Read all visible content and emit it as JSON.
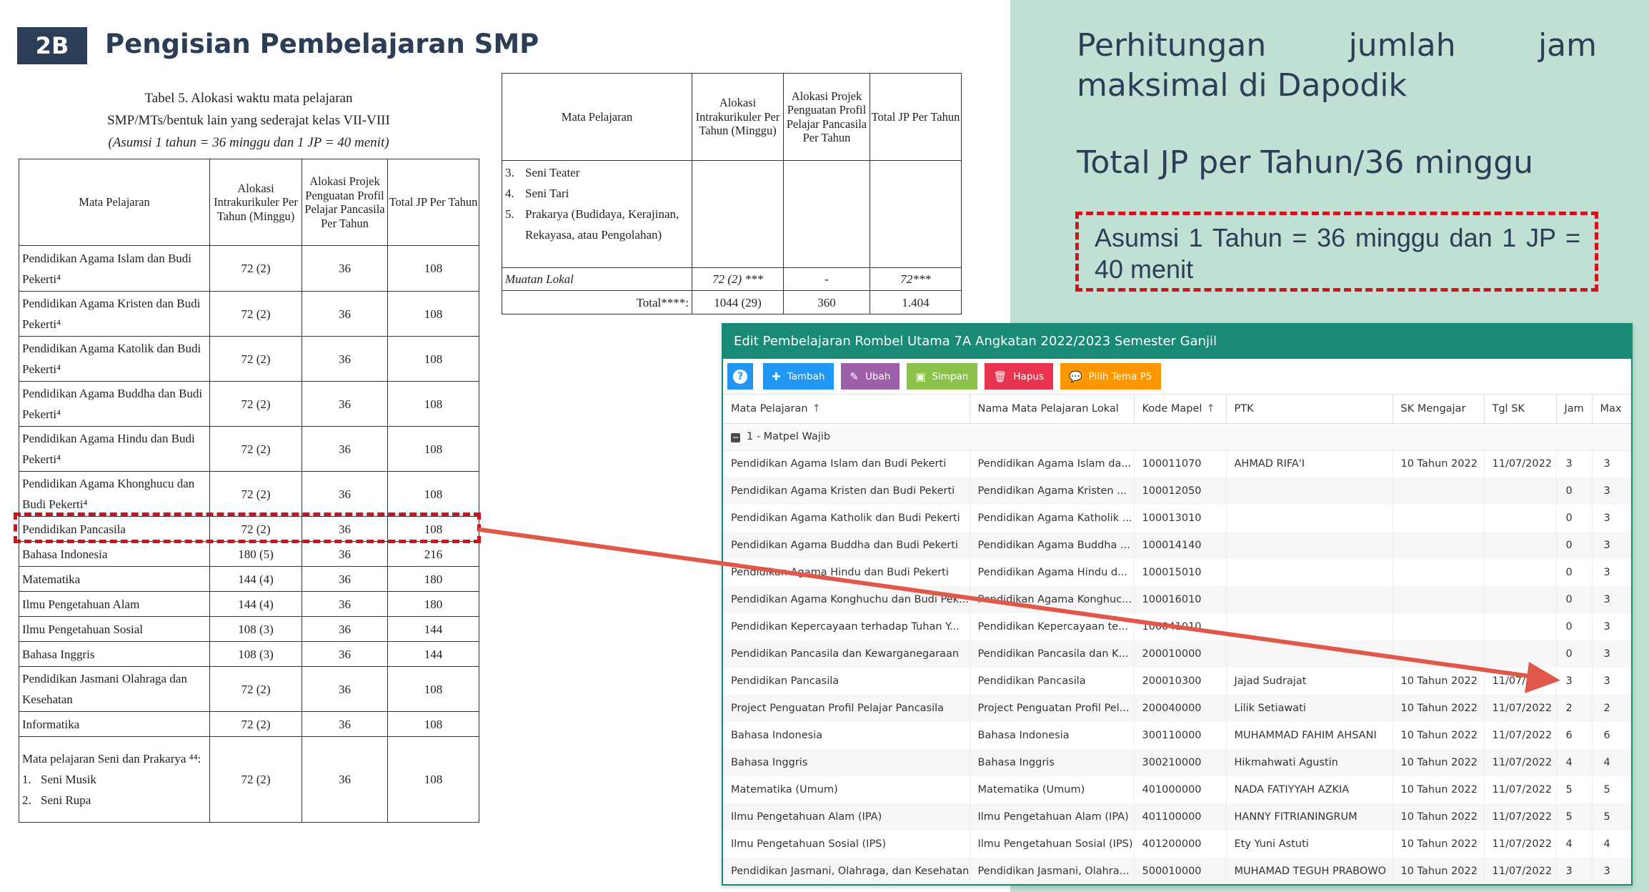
{
  "slide": {
    "badge": "2B",
    "title": "Pengisian Pembelajaran SMP",
    "calc_title": "Perhitungan  jumlah  jam  maksimal di Dapodik",
    "calc_formula": "Total JP per Tahun/36 minggu",
    "assumption": "Asumsi 1 Tahun = 36 minggu dan 1 JP = 40 menit"
  },
  "colors": {
    "green_panel": "#bfe0d2",
    "navy": "#2c3e57",
    "highlight_red": "#d0121b",
    "arrow": "#e0584a",
    "window_header": "#188a76"
  },
  "table5": {
    "caption_1": "Tabel 5. Alokasi waktu mata pelajaran",
    "caption_2": "SMP/MTs/bentuk lain yang sederajat kelas VII-VIII",
    "caption_3": "(Asumsi 1 tahun = 36 minggu dan 1 JP = 40 menit)",
    "headers": [
      "Mata Pelajaran",
      "Alokasi Intrakurikuler Per Tahun (Minggu)",
      "Alokasi Projek Penguatan Profil Pelajar Pancasila Per Tahun",
      "Total JP Per Tahun"
    ],
    "rows": [
      {
        "subject": "Pendidikan Agama Islam dan Budi Pekerti⁴",
        "intra": "72 (2)",
        "projek": "36",
        "total": "108"
      },
      {
        "subject": "Pendidikan Agama Kristen dan Budi Pekerti⁴",
        "intra": "72 (2)",
        "projek": "36",
        "total": "108"
      },
      {
        "subject": "Pendidikan Agama Katolik dan Budi Pekerti⁴",
        "intra": "72 (2)",
        "projek": "36",
        "total": "108"
      },
      {
        "subject": "Pendidikan Agama Buddha dan Budi Pekerti⁴",
        "intra": "72 (2)",
        "projek": "36",
        "total": "108"
      },
      {
        "subject": "Pendidikan Agama Hindu dan Budi Pekerti⁴",
        "intra": "72 (2)",
        "projek": "36",
        "total": "108"
      },
      {
        "subject": "Pendidikan Agama Khonghucu dan Budi Pekerti⁴",
        "intra": "72 (2)",
        "projek": "36",
        "total": "108"
      },
      {
        "subject": "Pendidikan Pancasila",
        "intra": "72 (2)",
        "projek": "36",
        "total": "108"
      },
      {
        "subject": "Bahasa Indonesia",
        "intra": "180 (5)",
        "projek": "36",
        "total": "216"
      },
      {
        "subject": "Matematika",
        "intra": "144 (4)",
        "projek": "36",
        "total": "180"
      },
      {
        "subject": "Ilmu Pengetahuan Alam",
        "intra": "144 (4)",
        "projek": "36",
        "total": "180"
      },
      {
        "subject": "Ilmu Pengetahuan Sosial",
        "intra": "108 (3)",
        "projek": "36",
        "total": "144"
      },
      {
        "subject": "Bahasa Inggris",
        "intra": "108 (3)",
        "projek": "36",
        "total": "144"
      },
      {
        "subject": "Pendidikan Jasmani Olahraga dan Kesehatan",
        "intra": "72 (2)",
        "projek": "36",
        "total": "108"
      },
      {
        "subject": "Informatika",
        "intra": "72 (2)",
        "projek": "36",
        "total": "108"
      }
    ],
    "seni_row": {
      "intro": "Mata pelajaran Seni dan Prakarya ⁴⁴:",
      "items": [
        {
          "n": "1.",
          "label": "Seni Musik"
        },
        {
          "n": "2.",
          "label": "Seni Rupa"
        }
      ],
      "intra": "72 (2)",
      "projek": "36",
      "total": "108"
    }
  },
  "table5_cont": {
    "headers": [
      "Mata Pelajaran",
      "Alokasi Intrakurikuler Per Tahun (Minggu)",
      "Alokasi Projek Penguatan Profil Pelajar Pancasila Per Tahun",
      "Total JP Per Tahun"
    ],
    "items": [
      {
        "n": "3.",
        "label": "Seni Teater"
      },
      {
        "n": "4.",
        "label": "Seni Tari"
      },
      {
        "n": "5.",
        "label": "Prakarya (Budidaya, Kerajinan, Rekayasa, atau Pengolahan)"
      }
    ],
    "muatan_lokal": {
      "subject": "Muatan Lokal",
      "intra": "72 (2) ***",
      "projek": "-",
      "total": "72***"
    },
    "total": {
      "label": "Total****:",
      "intra": "1044 (29)",
      "projek": "360",
      "total": "1.404"
    }
  },
  "app": {
    "window_title": "Edit Pembelajaran Rombel Utama 7A Angkatan 2022/2023 Semester Ganjil",
    "toolbar": {
      "help_icon": "question-circle-icon",
      "tambah": "Tambah",
      "ubah": "Ubah",
      "simpan": "Simpan",
      "hapus": "Hapus",
      "pilih_tema": "Pilih Tema P5"
    },
    "columns": [
      "Mata Pelajaran",
      "Nama Mata Pelajaran Lokal",
      "Kode Mapel",
      "PTK",
      "SK Mengajar",
      "Tgl SK",
      "Jam",
      "Max"
    ],
    "group_label": "1 - Matpel Wajib",
    "rows": [
      {
        "mapel": "Pendidikan Agama Islam dan Budi Pekerti",
        "lokal": "Pendidikan Agama Islam da...",
        "kode": "100011070",
        "ptk": "AHMAD RIFA'I",
        "sk": "10 Tahun 2022",
        "tgl": "11/07/2022",
        "jam": "3",
        "max": "3"
      },
      {
        "mapel": "Pendidikan Agama Kristen dan Budi Pekerti",
        "lokal": "Pendidikan Agama Kristen ...",
        "kode": "100012050",
        "ptk": "",
        "sk": "",
        "tgl": "",
        "jam": "0",
        "max": "3"
      },
      {
        "mapel": "Pendidikan Agama Katholik dan Budi Pekerti",
        "lokal": "Pendidikan Agama Katholik ...",
        "kode": "100013010",
        "ptk": "",
        "sk": "",
        "tgl": "",
        "jam": "0",
        "max": "3"
      },
      {
        "mapel": "Pendidikan Agama Buddha dan Budi Pekerti",
        "lokal": "Pendidikan Agama Buddha ...",
        "kode": "100014140",
        "ptk": "",
        "sk": "",
        "tgl": "",
        "jam": "0",
        "max": "3"
      },
      {
        "mapel": "Pendidikan Agama Hindu dan Budi Pekerti",
        "lokal": "Pendidikan Agama Hindu d...",
        "kode": "100015010",
        "ptk": "",
        "sk": "",
        "tgl": "",
        "jam": "0",
        "max": "3"
      },
      {
        "mapel": "Pendidikan Agama Konghuchu dan Budi Pek...",
        "lokal": "Pendidikan Agama Konghuc...",
        "kode": "100016010",
        "ptk": "",
        "sk": "",
        "tgl": "",
        "jam": "0",
        "max": "3"
      },
      {
        "mapel": "Pendidikan Kepercayaan terhadap Tuhan Y...",
        "lokal": "Pendidikan Kepercayaan te...",
        "kode": "100041010",
        "ptk": "",
        "sk": "",
        "tgl": "",
        "jam": "0",
        "max": "3"
      },
      {
        "mapel": "Pendidikan Pancasila dan Kewarganegaraan",
        "lokal": "Pendidikan Pancasila dan K...",
        "kode": "200010000",
        "ptk": "",
        "sk": "",
        "tgl": "",
        "jam": "0",
        "max": "3"
      },
      {
        "mapel": "Pendidikan Pancasila",
        "lokal": "Pendidikan Pancasila",
        "kode": "200010300",
        "ptk": "Jajad Sudrajat",
        "sk": "10 Tahun 2022",
        "tgl": "11/07/2022",
        "jam": "3",
        "max": "3"
      },
      {
        "mapel": "Project Penguatan Profil Pelajar Pancasila",
        "lokal": "Project Penguatan Profil Pel...",
        "kode": "200040000",
        "ptk": "Lilik Setiawati",
        "sk": "10 Tahun 2022",
        "tgl": "11/07/2022",
        "jam": "2",
        "max": "2"
      },
      {
        "mapel": "Bahasa Indonesia",
        "lokal": "Bahasa Indonesia",
        "kode": "300110000",
        "ptk": "MUHAMMAD FAHIM AHSANI",
        "sk": "10 Tahun 2022",
        "tgl": "11/07/2022",
        "jam": "6",
        "max": "6"
      },
      {
        "mapel": "Bahasa Inggris",
        "lokal": "Bahasa Inggris",
        "kode": "300210000",
        "ptk": "Hikmahwati Agustin",
        "sk": "10 Tahun 2022",
        "tgl": "11/07/2022",
        "jam": "4",
        "max": "4"
      },
      {
        "mapel": "Matematika (Umum)",
        "lokal": "Matematika (Umum)",
        "kode": "401000000",
        "ptk": "NADA FATIYYAH AZKIA",
        "sk": "10 Tahun 2022",
        "tgl": "11/07/2022",
        "jam": "5",
        "max": "5"
      },
      {
        "mapel": "Ilmu Pengetahuan Alam (IPA)",
        "lokal": "Ilmu Pengetahuan Alam (IPA)",
        "kode": "401100000",
        "ptk": "HANNY FITRIANINGRUM",
        "sk": "10 Tahun 2022",
        "tgl": "11/07/2022",
        "jam": "5",
        "max": "5"
      },
      {
        "mapel": "Ilmu Pengetahuan Sosial (IPS)",
        "lokal": "Ilmu Pengetahuan Sosial (IPS)",
        "kode": "401200000",
        "ptk": "Ety Yuni Astuti",
        "sk": "10 Tahun 2022",
        "tgl": "11/07/2022",
        "jam": "4",
        "max": "4"
      },
      {
        "mapel": "Pendidikan Jasmani, Olahraga, dan Kesehatan",
        "lokal": "Pendidikan Jasmani, Olahra...",
        "kode": "500010000",
        "ptk": "MUHAMAD TEGUH PRABOWO",
        "sk": "10 Tahun 2022",
        "tgl": "11/07/2022",
        "jam": "3",
        "max": "3"
      }
    ]
  }
}
